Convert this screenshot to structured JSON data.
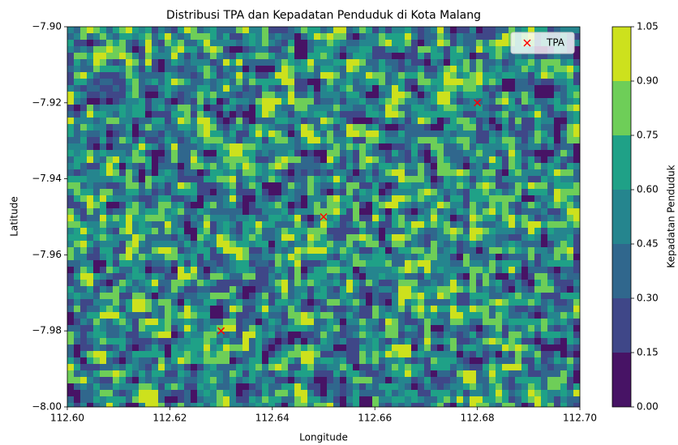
{
  "chart_data": {
    "type": "scatter",
    "title": "Distribusi TPA dan Kepadatan Penduduk di Kota Malang",
    "xlabel": "Longitude",
    "ylabel": "Latitude",
    "series": [
      {
        "name": "TPA",
        "color": "#ff0000",
        "marker": "x",
        "x": [
          112.63,
          112.65,
          112.68
        ],
        "values": [
          -7.98,
          -7.95,
          -7.92
        ]
      }
    ],
    "xlim": [
      112.6,
      112.7
    ],
    "xticks": [
      {
        "value": 112.6,
        "label": "112.60"
      },
      {
        "value": 112.62,
        "label": "112.62"
      },
      {
        "value": 112.64,
        "label": "112.64"
      },
      {
        "value": 112.66,
        "label": "112.66"
      },
      {
        "value": 112.68,
        "label": "112.68"
      },
      {
        "value": 112.7,
        "label": "112.70"
      }
    ],
    "ylim": [
      -8.0,
      -7.9
    ],
    "yticks": [
      {
        "value": -8.0,
        "label": "−8.00"
      },
      {
        "value": -7.98,
        "label": "−7.98"
      },
      {
        "value": -7.96,
        "label": "−7.96"
      },
      {
        "value": -7.94,
        "label": "−7.94"
      },
      {
        "value": -7.92,
        "label": "−7.92"
      },
      {
        "value": -7.9,
        "label": "−7.90"
      }
    ],
    "legend": "upper right",
    "colorbar": {
      "label": "Kepadatan Penduduk",
      "levels": [
        {
          "value": 0,
          "label": "0.00"
        },
        {
          "value": 0.15,
          "label": "0.15"
        },
        {
          "value": 0.3,
          "label": "0.30"
        },
        {
          "value": 0.45,
          "label": "0.45"
        },
        {
          "value": 0.6,
          "label": "0.60"
        },
        {
          "value": 0.75,
          "label": "0.75"
        },
        {
          "value": 0.9,
          "label": "0.90"
        },
        {
          "value": 1.05,
          "label": "1.05"
        }
      ],
      "colors": [
        "#471365",
        "#3f4788",
        "#30678d",
        "#25858e",
        "#1fa187",
        "#6ece58",
        "#cde11d"
      ]
    }
  }
}
